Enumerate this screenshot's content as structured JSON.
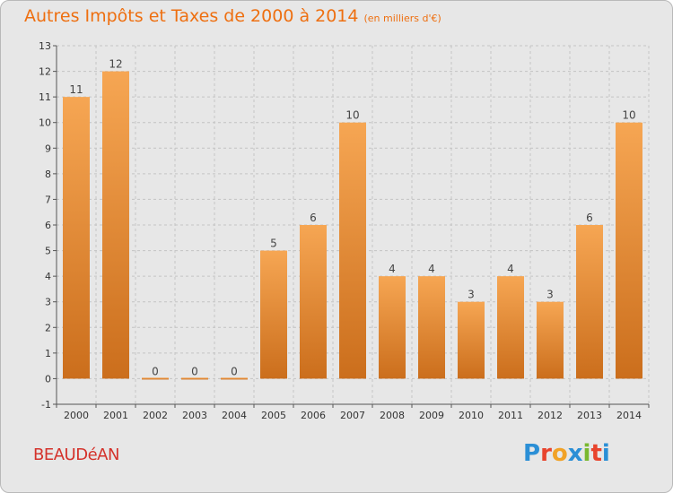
{
  "header": {
    "title": "Autres Impôts et Taxes de 2000 à 2014",
    "unit": "(en milliers d'€)"
  },
  "footer": {
    "commune": "BEAUDéAN",
    "logo": {
      "text": "Proxiti",
      "letter_colors": [
        "#2b8fd6",
        "#e8442d",
        "#f1a227",
        "#2b8fd6",
        "#7ab830",
        "#e8442d",
        "#2b8fd6"
      ]
    }
  },
  "colors": {
    "bar_light": "#f6a653",
    "bar_dark": "#cb6e1c",
    "title": "#ee6f10",
    "commune": "#d4322b",
    "background": "#e7e7e7"
  },
  "chart_data": {
    "type": "bar",
    "title": "Autres Impôts et Taxes de 2000 à 2014",
    "subtitle": "(en milliers d'€)",
    "categories": [
      "2000",
      "2001",
      "2002",
      "2003",
      "2004",
      "2005",
      "2006",
      "2007",
      "2008",
      "2009",
      "2010",
      "2011",
      "2012",
      "2013",
      "2014"
    ],
    "values": [
      11,
      12,
      0,
      0,
      0,
      5,
      6,
      10,
      4,
      4,
      3,
      4,
      3,
      6,
      10
    ],
    "yticks": [
      -1,
      0,
      1,
      2,
      3,
      4,
      5,
      6,
      7,
      8,
      9,
      10,
      11,
      12,
      13
    ],
    "ylim": [
      -1,
      13
    ],
    "grid": true,
    "xlabel": "",
    "ylabel": ""
  }
}
